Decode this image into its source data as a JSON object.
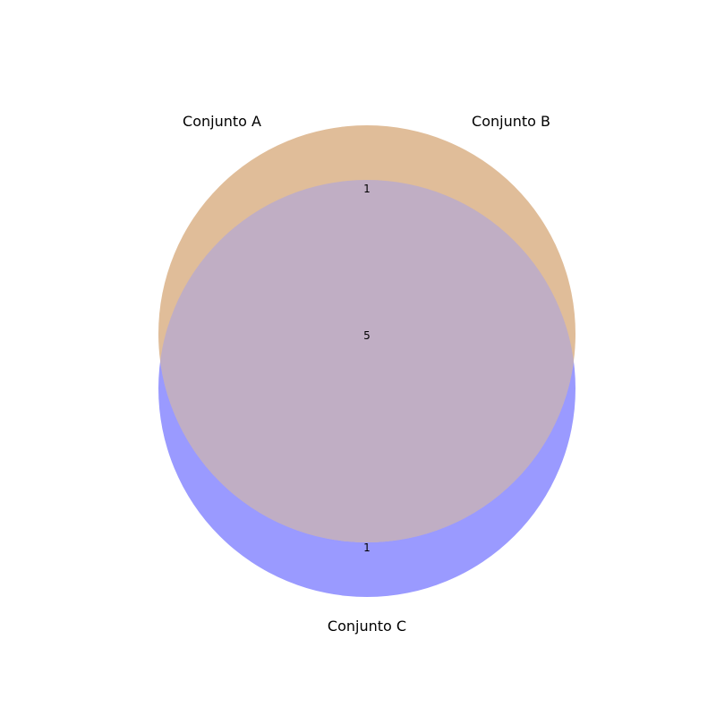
{
  "diagram": {
    "type": "venn3",
    "sets": [
      {
        "name": "Conjunto A",
        "color": "#e0bd99"
      },
      {
        "name": "Conjunto B",
        "color": "#e0bd99"
      },
      {
        "name": "Conjunto C",
        "color": "#9a9aff"
      }
    ],
    "overlap_color": "#c0aec4",
    "regions": {
      "a_and_b_only": "1",
      "a_and_b_and_c": "5",
      "c_only": "1"
    }
  }
}
